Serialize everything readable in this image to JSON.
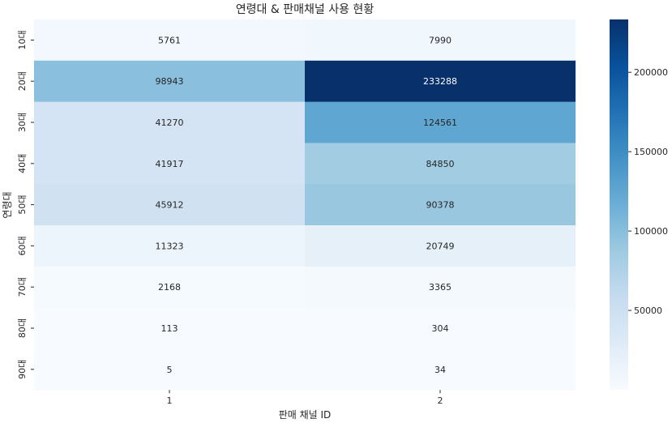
{
  "chart_data": {
    "type": "heatmap",
    "title": "연령대 & 판매채널 사용 현황",
    "xlabel": "판매 채널 ID",
    "ylabel": "연령대",
    "x": [
      "1",
      "2"
    ],
    "y": [
      "10대",
      "20대",
      "30대",
      "40대",
      "50대",
      "60대",
      "70대",
      "80대",
      "90대"
    ],
    "values": [
      [
        5761,
        7990
      ],
      [
        98943,
        233288
      ],
      [
        41270,
        124561
      ],
      [
        41917,
        84850
      ],
      [
        45912,
        90378
      ],
      [
        11323,
        20749
      ],
      [
        2168,
        3365
      ],
      [
        113,
        304
      ],
      [
        5,
        34
      ]
    ],
    "colorbar": {
      "range": [
        5,
        233288
      ],
      "ticks": [
        50000,
        100000,
        150000,
        200000
      ],
      "tick_labels": [
        "50000",
        "100000",
        "150000",
        "200000"
      ],
      "colormap": "Blues",
      "low_color": "#f7fbff",
      "high_color": "#08306b"
    },
    "annotations": true
  }
}
